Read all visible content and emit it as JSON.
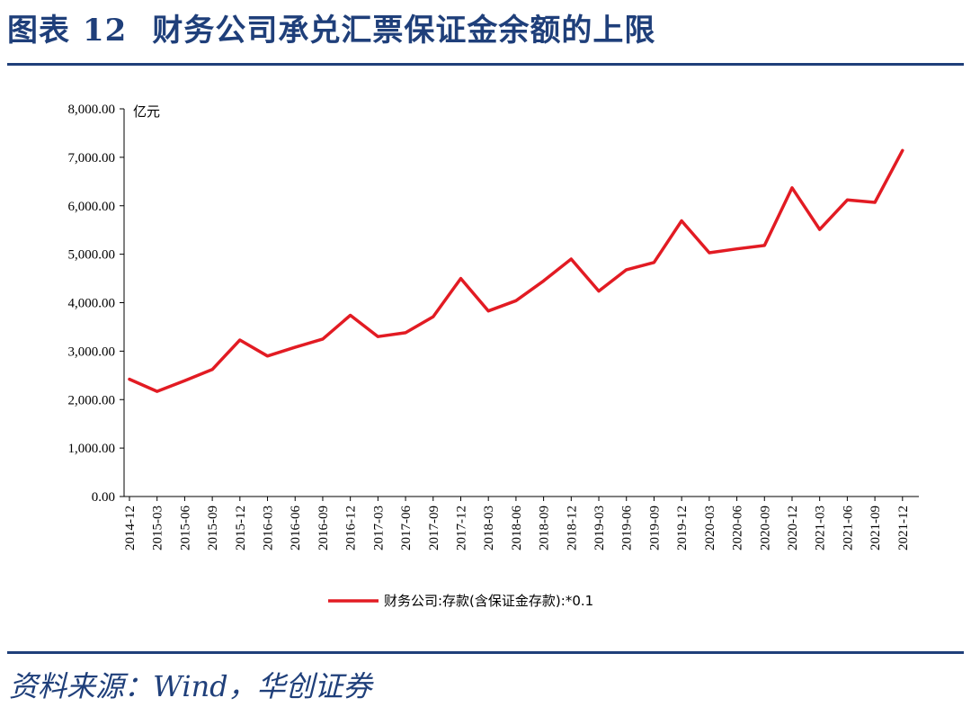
{
  "header": {
    "figure_label": "图表",
    "figure_number": "12",
    "title": "财务公司承兑汇票保证金余额的上限"
  },
  "footer": {
    "source": "资料来源：Wind，华创证券"
  },
  "colors": {
    "accent": "#1f3f7a",
    "series_line": "#e21b23"
  },
  "chart_data": {
    "type": "line",
    "unit_label": "亿元",
    "ylim": [
      0,
      8000
    ],
    "y_ticks": [
      "0.00",
      "1,000.00",
      "2,000.00",
      "3,000.00",
      "4,000.00",
      "5,000.00",
      "6,000.00",
      "7,000.00",
      "8,000.00"
    ],
    "y_tick_values": [
      0,
      1000,
      2000,
      3000,
      4000,
      5000,
      6000,
      7000,
      8000
    ],
    "grid": false,
    "legend_position": "bottom-center",
    "categories": [
      "2014-12",
      "2015-03",
      "2015-06",
      "2015-09",
      "2015-12",
      "2016-03",
      "2016-06",
      "2016-09",
      "2016-12",
      "2017-03",
      "2017-06",
      "2017-09",
      "2017-12",
      "2018-03",
      "2018-06",
      "2018-09",
      "2018-12",
      "2019-03",
      "2019-06",
      "2019-09",
      "2019-12",
      "2020-03",
      "2020-06",
      "2020-09",
      "2020-12",
      "2021-03",
      "2021-06",
      "2021-09",
      "2021-12"
    ],
    "series": [
      {
        "name": "财务公司:存款(含保证金存款):*0.1",
        "values": [
          2420,
          2170,
          2390,
          2620,
          3230,
          2900,
          3080,
          3250,
          3740,
          3300,
          3380,
          3710,
          4500,
          3830,
          4040,
          4450,
          4900,
          4240,
          4680,
          4830,
          5690,
          5030,
          5110,
          5180,
          6370,
          5510,
          6120,
          6070,
          7140
        ]
      }
    ]
  }
}
